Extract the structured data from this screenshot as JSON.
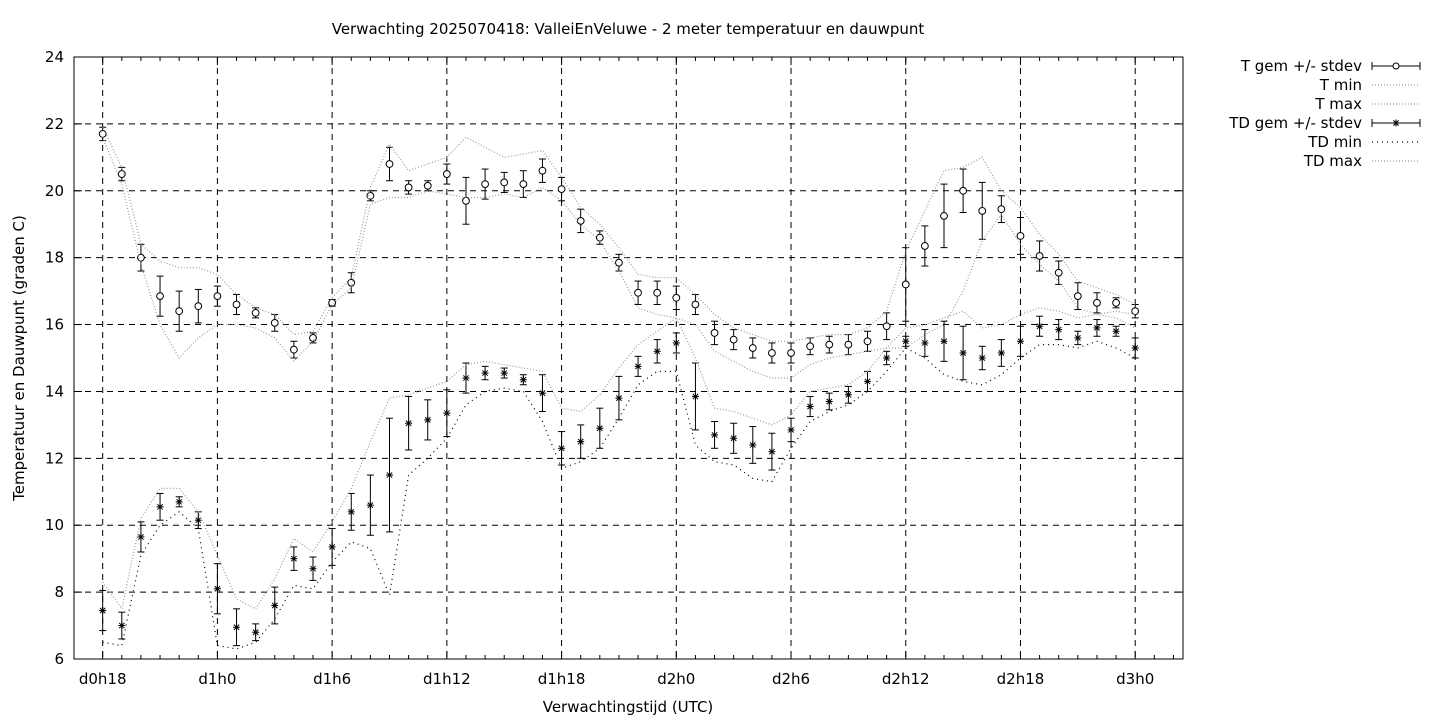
{
  "chart_data": {
    "type": "line",
    "title": "Verwachting 2025070418: ValleiEnVeluwe - 2 meter temperatuur en dauwpunt",
    "xlabel": "Verwachtingstijd (UTC)",
    "ylabel": "Temperatuur en Dauwpunt (graden C)",
    "ylim": [
      6,
      24
    ],
    "yticks": [
      "6",
      "8",
      "10",
      "12",
      "14",
      "16",
      "18",
      "20",
      "22",
      "24"
    ],
    "xlim": [
      -1.5,
      56.5
    ],
    "x_ticks": [
      {
        "x": 0,
        "label": "d0h18"
      },
      {
        "x": 6,
        "label": "d1h0"
      },
      {
        "x": 12,
        "label": "d1h6"
      },
      {
        "x": 18,
        "label": "d1h12"
      },
      {
        "x": 24,
        "label": "d1h18"
      },
      {
        "x": 30,
        "label": "d2h0"
      },
      {
        "x": 36,
        "label": "d2h6"
      },
      {
        "x": 42,
        "label": "d2h12"
      },
      {
        "x": 48,
        "label": "d2h18"
      },
      {
        "x": 54,
        "label": "d3h0"
      }
    ],
    "x_unit": "hours after d0h18",
    "grid": true,
    "legend_position": "outside-right",
    "series": [
      {
        "name": "T gem +/- stdev",
        "style": "errorbars-circle",
        "values": [
          21.7,
          20.5,
          18.0,
          16.85,
          16.4,
          16.55,
          16.85,
          16.6,
          16.35,
          16.05,
          15.25,
          15.6,
          16.65,
          17.25,
          19.85,
          20.8,
          20.1,
          20.15,
          20.5,
          19.7,
          20.2,
          20.25,
          20.2,
          20.6,
          20.05,
          19.1,
          18.6,
          17.85,
          16.95,
          16.95,
          16.8,
          16.6,
          15.75,
          15.55,
          15.3,
          15.15,
          15.15,
          15.35,
          15.4,
          15.4,
          15.5,
          15.95,
          17.2,
          18.35,
          19.25,
          20.0,
          19.4,
          19.45,
          18.65,
          18.05,
          17.55,
          16.85,
          16.65,
          16.65,
          16.4
        ],
        "stdev": [
          0.2,
          0.2,
          0.4,
          0.6,
          0.6,
          0.5,
          0.3,
          0.3,
          0.15,
          0.25,
          0.25,
          0.15,
          0.1,
          0.3,
          0.15,
          0.5,
          0.2,
          0.15,
          0.3,
          0.7,
          0.45,
          0.3,
          0.4,
          0.35,
          0.35,
          0.35,
          0.2,
          0.25,
          0.35,
          0.35,
          0.35,
          0.3,
          0.35,
          0.3,
          0.3,
          0.3,
          0.3,
          0.25,
          0.25,
          0.3,
          0.3,
          0.4,
          1.1,
          0.6,
          0.95,
          0.65,
          0.85,
          0.4,
          0.55,
          0.45,
          0.35,
          0.4,
          0.3,
          0.15,
          0.2
        ]
      },
      {
        "name": "T min",
        "style": "dotted",
        "values": [
          21.6,
          20.2,
          17.8,
          16.0,
          15.0,
          15.6,
          16.0,
          16.0,
          15.9,
          15.6,
          14.9,
          15.5,
          16.6,
          17.1,
          19.6,
          19.8,
          19.8,
          20.0,
          19.9,
          19.8,
          19.8,
          19.9,
          19.8,
          20.1,
          19.7,
          19.0,
          18.5,
          17.6,
          16.5,
          16.3,
          16.2,
          16.0,
          15.2,
          14.9,
          14.6,
          14.4,
          14.4,
          14.8,
          15.0,
          15.1,
          15.2,
          15.3,
          15.3,
          15.7,
          16.0,
          17.0,
          18.5,
          19.3,
          18.4,
          17.8,
          17.3,
          16.5,
          16.3,
          16.4,
          16.3
        ]
      },
      {
        "name": "T max",
        "style": "dotted",
        "values": [
          21.9,
          20.7,
          18.4,
          17.9,
          17.7,
          17.7,
          17.5,
          16.9,
          16.5,
          16.3,
          15.7,
          15.8,
          16.8,
          17.4,
          20.1,
          21.4,
          20.6,
          20.8,
          21.0,
          21.6,
          21.3,
          21.0,
          21.1,
          21.2,
          20.4,
          19.5,
          19.0,
          18.3,
          17.5,
          17.4,
          17.4,
          16.9,
          16.3,
          15.9,
          15.7,
          15.5,
          15.5,
          15.6,
          15.7,
          15.7,
          15.9,
          16.4,
          18.2,
          19.4,
          20.6,
          20.7,
          21.0,
          20.0,
          19.5,
          18.7,
          18.1,
          17.3,
          17.1,
          16.9,
          16.6
        ]
      },
      {
        "name": "TD gem +/- stdev",
        "style": "errorbars-star",
        "values": [
          7.45,
          7.0,
          9.65,
          10.55,
          10.7,
          10.15,
          8.1,
          6.95,
          6.8,
          7.6,
          9.0,
          8.7,
          9.35,
          10.4,
          10.6,
          11.5,
          13.05,
          13.15,
          13.35,
          14.4,
          14.55,
          14.55,
          14.35,
          13.95,
          12.3,
          12.5,
          12.9,
          13.8,
          14.75,
          15.2,
          15.45,
          13.85,
          12.7,
          12.6,
          12.4,
          12.2,
          12.85,
          13.55,
          13.7,
          13.9,
          14.3,
          15.0,
          15.5,
          15.45,
          15.5,
          15.15,
          15.0,
          15.15,
          15.5,
          15.95,
          15.85,
          15.6,
          15.9,
          15.8,
          15.3
        ],
        "stdev": [
          0.6,
          0.4,
          0.45,
          0.4,
          0.15,
          0.25,
          0.75,
          0.55,
          0.25,
          0.55,
          0.35,
          0.35,
          0.55,
          0.55,
          0.9,
          1.7,
          0.8,
          0.6,
          0.7,
          0.45,
          0.2,
          0.15,
          0.15,
          0.55,
          0.5,
          0.5,
          0.6,
          0.65,
          0.3,
          0.35,
          0.3,
          1.0,
          0.4,
          0.45,
          0.55,
          0.55,
          0.35,
          0.3,
          0.25,
          0.25,
          0.3,
          0.2,
          0.15,
          0.4,
          0.6,
          0.8,
          0.35,
          0.4,
          0.45,
          0.3,
          0.3,
          0.2,
          0.25,
          0.15,
          0.3
        ]
      },
      {
        "name": "TD min",
        "style": "dotted-coarse",
        "values": [
          6.5,
          6.4,
          9.1,
          10.0,
          10.4,
          9.9,
          6.4,
          6.3,
          6.5,
          7.2,
          8.2,
          8.1,
          8.9,
          9.5,
          9.3,
          7.9,
          11.5,
          12.0,
          12.6,
          13.6,
          14.0,
          14.1,
          14.0,
          13.1,
          11.7,
          11.9,
          12.3,
          13.2,
          14.2,
          14.6,
          14.6,
          12.4,
          11.9,
          11.8,
          11.4,
          11.3,
          12.3,
          13.1,
          13.4,
          13.6,
          14.0,
          14.6,
          15.3,
          15.0,
          14.5,
          14.3,
          14.2,
          14.5,
          15.0,
          15.4,
          15.4,
          15.3,
          15.5,
          15.3,
          15.0
        ]
      },
      {
        "name": "TD max",
        "style": "dotted",
        "values": [
          8.3,
          7.5,
          10.2,
          11.1,
          11.1,
          10.4,
          9.1,
          7.8,
          7.5,
          8.4,
          9.6,
          9.2,
          10.1,
          11.1,
          12.5,
          13.8,
          13.9,
          14.1,
          14.3,
          14.8,
          14.9,
          14.8,
          14.7,
          14.6,
          13.5,
          13.4,
          13.9,
          14.7,
          15.4,
          15.8,
          16.2,
          15.0,
          13.5,
          13.4,
          13.2,
          13.0,
          13.3,
          14.0,
          14.1,
          14.2,
          14.6,
          15.3,
          15.9,
          16.0,
          16.2,
          16.4,
          15.9,
          16.0,
          16.3,
          16.5,
          16.4,
          16.2,
          16.3,
          16.2,
          15.9
        ]
      }
    ]
  }
}
